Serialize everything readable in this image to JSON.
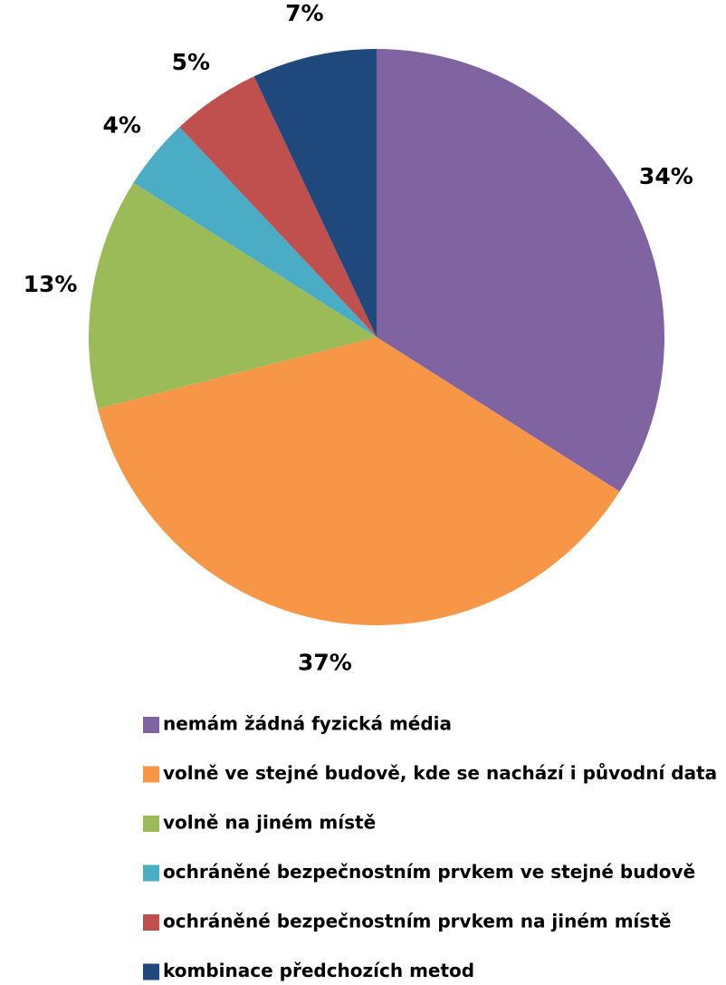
{
  "chart_data": {
    "type": "pie",
    "categories": [
      "nemám žádná fyzická média",
      "volně ve stejné budově, kde se nachází i původní data",
      "volně na jiném místě",
      "ochráněné bezpečnostním prvkem ve stejné budově",
      "ochráněné bezpečnostním prvkem na jiném místě",
      "kombinace předchozích metod"
    ],
    "values": [
      34,
      37,
      13,
      4,
      5,
      7
    ],
    "value_labels": [
      "34%",
      "37%",
      "13%",
      "4%",
      "5%",
      "7%"
    ],
    "colors": [
      "#8064a2",
      "#f79646",
      "#9bbb59",
      "#4bacc6",
      "#c0504d",
      "#1f497d"
    ],
    "legend": "bottom"
  }
}
